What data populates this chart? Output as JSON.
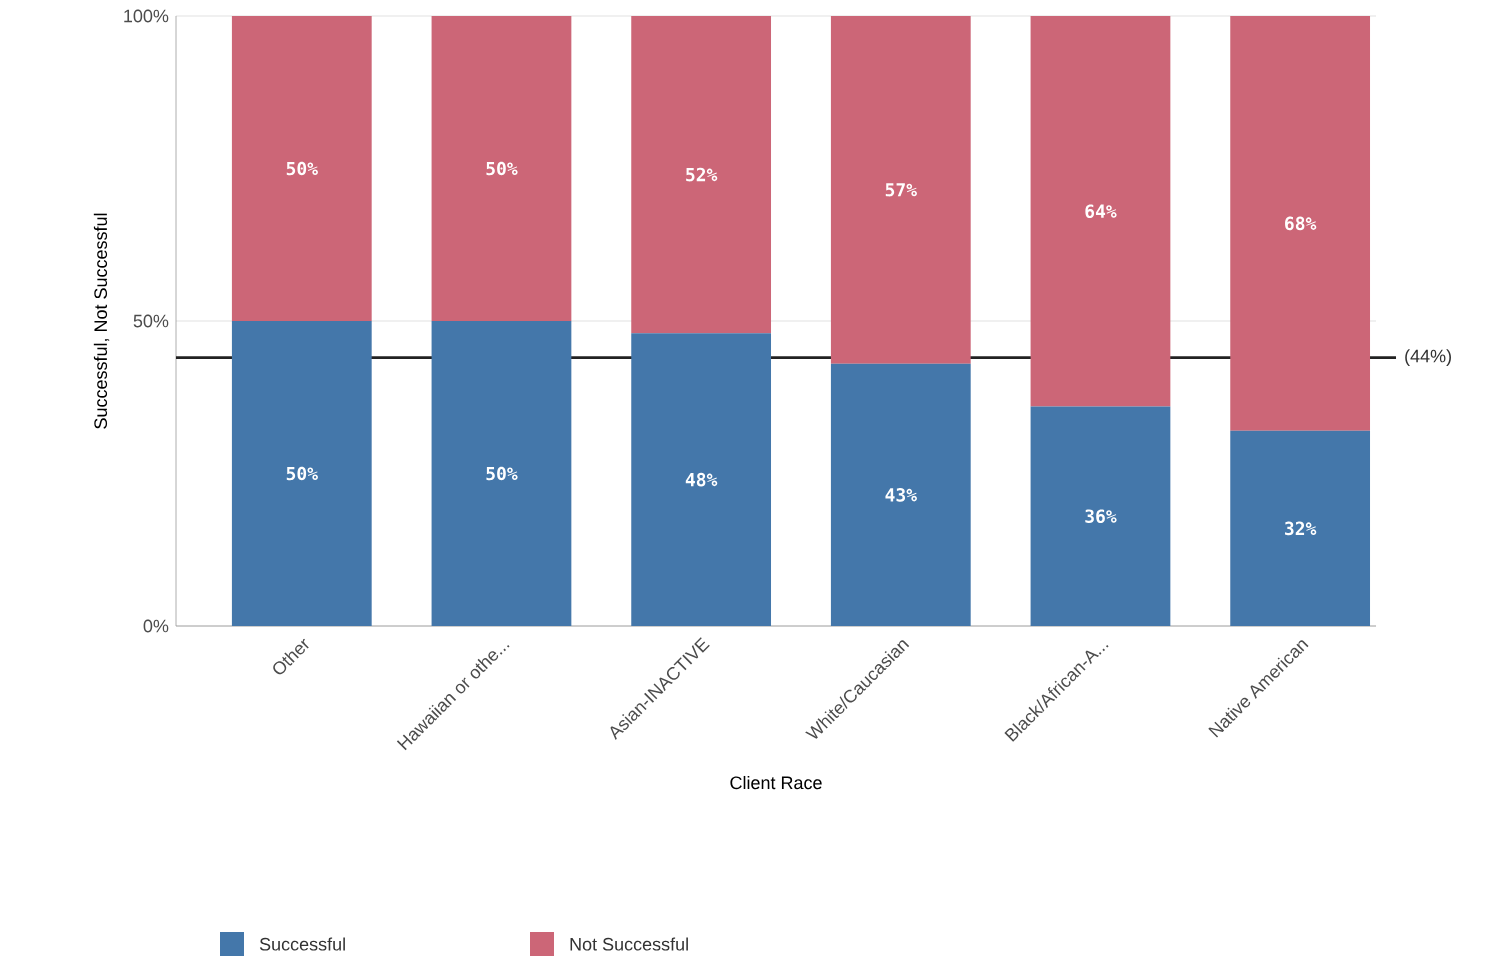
{
  "chart_data": {
    "type": "bar",
    "stacked": true,
    "categories": [
      "Other",
      "Hawaiian or othe...",
      "Asian-INACTIVE",
      "White/Caucasian",
      "Black/African-A...",
      "Native American"
    ],
    "series": [
      {
        "name": "Successful",
        "color": "#4477aa",
        "values": [
          50,
          50,
          48,
          43,
          36,
          32
        ],
        "value_labels": [
          "50%",
          "50%",
          "48%",
          "43%",
          "36%",
          "32%"
        ]
      },
      {
        "name": "Not Successful",
        "color": "#cc6677",
        "values": [
          50,
          50,
          52,
          57,
          64,
          68
        ],
        "value_labels": [
          "50%",
          "50%",
          "52%",
          "57%",
          "64%",
          "68%"
        ]
      }
    ],
    "ylim": [
      0,
      100
    ],
    "yticks": [
      {
        "value": 0,
        "label": "0%"
      },
      {
        "value": 50,
        "label": "50%"
      },
      {
        "value": 100,
        "label": "100%"
      }
    ],
    "xlabel": "Client Race",
    "ylabel": "Successful, Not Successful",
    "ref_lines": [
      {
        "axis": "y",
        "value": 44,
        "label": "(44%)",
        "color": "#222222"
      }
    ],
    "grid": "y",
    "legend": "bottom"
  }
}
